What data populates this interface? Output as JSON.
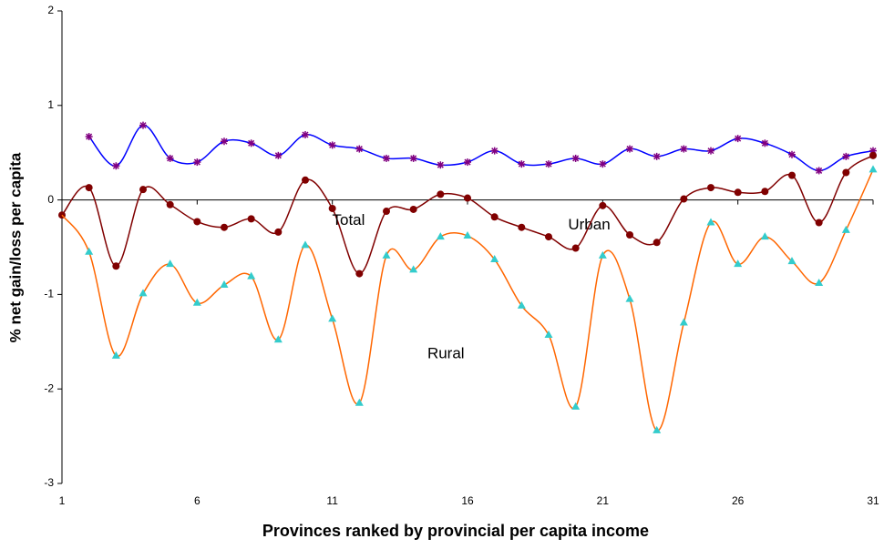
{
  "chart_data": {
    "type": "line",
    "x_label": "Provinces ranked by provincial per capita income",
    "y_label": "% net gain/loss per capita",
    "x": [
      1,
      2,
      3,
      4,
      5,
      6,
      7,
      8,
      9,
      10,
      11,
      12,
      13,
      14,
      15,
      16,
      17,
      18,
      19,
      20,
      21,
      22,
      23,
      24,
      25,
      26,
      27,
      28,
      29,
      30,
      31
    ],
    "xlim": [
      1,
      31
    ],
    "xticks": [
      1,
      6,
      11,
      16,
      21,
      26,
      31
    ],
    "ylim": [
      -3,
      2
    ],
    "yticks": [
      -3,
      -2,
      -1,
      0,
      1,
      2
    ],
    "grid": false,
    "smooth": true,
    "series": [
      {
        "name": "Urban",
        "color": "#0000ff",
        "marker": "star",
        "marker_color": "#800080",
        "values": [
          null,
          0.67,
          0.36,
          0.79,
          0.44,
          0.4,
          0.62,
          0.6,
          0.47,
          0.69,
          0.58,
          0.54,
          0.44,
          0.44,
          0.37,
          0.4,
          0.52,
          0.38,
          0.38,
          0.44,
          0.38,
          0.54,
          0.46,
          0.54,
          0.52,
          0.65,
          0.6,
          0.48,
          0.31,
          0.46,
          0.52
        ]
      },
      {
        "name": "Total",
        "color": "#800000",
        "marker": "circle",
        "marker_color": "#800000",
        "values": [
          -0.16,
          0.13,
          -0.7,
          0.11,
          -0.05,
          -0.23,
          -0.29,
          -0.2,
          -0.34,
          0.21,
          -0.09,
          -0.78,
          -0.12,
          -0.1,
          0.06,
          0.02,
          -0.18,
          -0.29,
          -0.39,
          -0.51,
          -0.06,
          -0.37,
          -0.45,
          0.01,
          0.13,
          0.08,
          0.09,
          0.26,
          -0.24,
          0.29,
          0.47
        ]
      },
      {
        "name": "Rural",
        "color": "#ff6600",
        "marker": "triangle",
        "marker_color": "#33cccc",
        "values": [
          -0.16,
          -0.55,
          -1.65,
          -0.99,
          -0.68,
          -1.09,
          -0.9,
          -0.81,
          -1.48,
          -0.48,
          -1.26,
          -2.15,
          -0.59,
          -0.74,
          -0.39,
          -0.38,
          -0.63,
          -1.12,
          -1.43,
          -2.19,
          -0.59,
          -1.05,
          -2.44,
          -1.3,
          -0.24,
          -0.68,
          -0.39,
          -0.65,
          -0.88,
          -0.32,
          0.32
        ]
      }
    ]
  }
}
